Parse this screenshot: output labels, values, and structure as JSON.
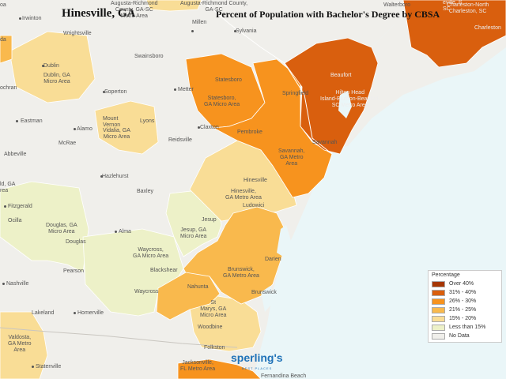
{
  "header": {
    "location": "Hinesville, GA",
    "title": "Percent of Population with Bachelor's Degree by CBSA"
  },
  "legend": {
    "title": "Percentage",
    "items": [
      {
        "label": "Over 40%",
        "color": "#a63603"
      },
      {
        "label": "31% - 40%",
        "color": "#d95f0e"
      },
      {
        "label": "26% - 30%",
        "color": "#f7931e"
      },
      {
        "label": "21% - 25%",
        "color": "#f9b94d"
      },
      {
        "label": "15% - 20%",
        "color": "#f9dd96"
      },
      {
        "label": "Less than 15%",
        "color": "#edf1c8"
      },
      {
        "label": "No Data",
        "color": "#f0efeb"
      }
    ]
  },
  "cbsa_labels": {
    "augusta": "Augusta-Richmond\nCounty, GA-SC\nMetro Area",
    "augusta2": "Augusta-Richmond County,\nGA-SC",
    "dublin": "Dublin, GA\nMicro Area",
    "vidalia": "Vidalia, GA\nMicro Area",
    "statesboro": "Statesboro,\nGA Micro Area",
    "hilton": "Hilton Head\nIsland-Bluffton-Beaufort,\nSC Metro Area",
    "savannah": "Savannah,\nGA Metro\nArea",
    "hinesville": "Hinesville,\nGA Metro Area",
    "douglas": "Douglas, GA\nMicro Area",
    "jesup": "Jesup, GA\nMicro Area",
    "waycross": "Waycross,\nGA Micro Area",
    "brunswick": "Brunswick,\nGA Metro Area",
    "stmarys": "St\nMarys, GA\nMicro Area",
    "valdosta": "Valdosta,\nGA Metro\nArea",
    "jacksonville": "Jacksonville,\nFL Metro Area",
    "charleston": "Charleston-North\nCharleston, SC"
  },
  "places": {
    "irwinton": "Irwinton",
    "wrightsville": "Wrightsville",
    "dublin": "Dublin",
    "swainsboro": "Swainsboro",
    "millen": "Millen",
    "sylvania": "Sylvania",
    "walterboro": "Walterboro",
    "charleston": "Charleston",
    "soperton": "Soperton",
    "metter": "Metter",
    "statesboro": "Statesboro",
    "springfield": "Springfield",
    "beaufort": "Beaufort",
    "eastman": "Eastman",
    "mount_vernon": "Mount\nVernon",
    "lyons": "Lyons",
    "alamo": "Alamo",
    "mcrae": "McRae",
    "claxton": "Claxton",
    "reidsville": "Reidsville",
    "pembroke": "Pembroke",
    "savannah": "Savannah",
    "abbeville": "Abbeville",
    "hazlehurst": "Hazlehurst",
    "baxley": "Baxley",
    "hinesville": "Hinesville",
    "ludowici": "Ludowici",
    "fitzgerald": "Fitzgerald",
    "ocilla": "Ocilla",
    "douglas": "Douglas",
    "alma": "Alma",
    "jesup": "Jesup",
    "darien": "Darien",
    "pearson": "Pearson",
    "blackshear": "Blackshear",
    "nashville": "Nashville",
    "waycross": "Waycross",
    "nahunta": "Nahunta",
    "brunswick": "Brunswick",
    "lakeland": "Lakeland",
    "homerville": "Homerville",
    "woodbine": "Woodbine",
    "folkston": "Folkston",
    "statenville": "Statenville",
    "fernandina": "Fernandina Beach",
    "ochran": "ochran",
    "ld": "ld, GA\nrea",
    "da": "da",
    "oa": "oa",
    "eville": "eville, S\nSC",
    "sc": "SC",
    "augusta_sc": "GA-SC"
  },
  "branding": {
    "logo": "sperling's",
    "tagline": "BEST PLACES"
  }
}
